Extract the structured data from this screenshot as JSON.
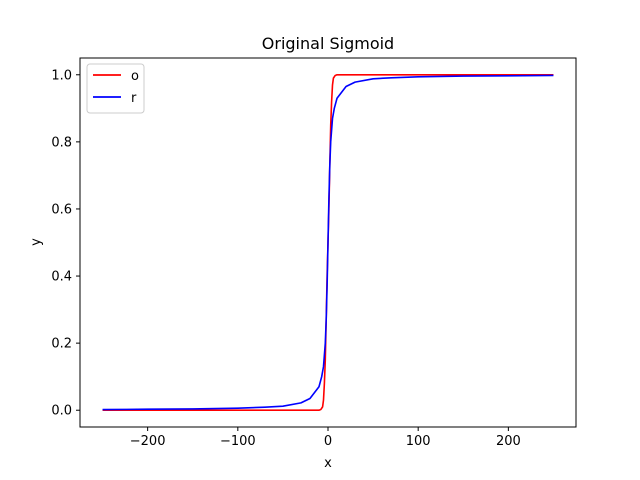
{
  "chart_data": {
    "type": "line",
    "title": "Original Sigmoid",
    "xlabel": "x",
    "ylabel": "y",
    "xlim": [
      -275,
      275
    ],
    "ylim": [
      -0.05,
      1.05
    ],
    "xticks": [
      -200,
      -100,
      0,
      100,
      200
    ],
    "xtick_labels": [
      "−200",
      "−100",
      "0",
      "100",
      "200"
    ],
    "yticks": [
      0.0,
      0.2,
      0.4,
      0.6,
      0.8,
      1.0
    ],
    "ytick_labels": [
      "0.0",
      "0.2",
      "0.4",
      "0.6",
      "0.8",
      "1.0"
    ],
    "grid": false,
    "legend": "upper-left",
    "series": [
      {
        "name": "o",
        "color": "#ff0000",
        "x": [
          -250,
          -200,
          -150,
          -100,
          -50,
          -20,
          -10,
          -8,
          -6,
          -5,
          -4,
          -3,
          -2,
          -1,
          0,
          1,
          2,
          3,
          4,
          5,
          6,
          8,
          10,
          20,
          50,
          100,
          150,
          200,
          250
        ],
        "y": [
          0.0,
          0.0,
          0.0,
          0.0,
          0.0,
          0.0,
          0.0,
          0.002,
          0.01,
          0.03,
          0.08,
          0.15,
          0.27,
          0.4,
          0.5,
          0.6,
          0.73,
          0.85,
          0.92,
          0.97,
          0.99,
          0.998,
          1.0,
          1.0,
          1.0,
          1.0,
          1.0,
          1.0,
          1.0
        ]
      },
      {
        "name": "r",
        "color": "#0000ff",
        "x": [
          -250,
          -200,
          -150,
          -100,
          -70,
          -50,
          -30,
          -20,
          -10,
          -7,
          -5,
          -3,
          -2,
          -1,
          0,
          1,
          2,
          3,
          5,
          7,
          10,
          20,
          30,
          50,
          70,
          100,
          150,
          200,
          250
        ],
        "y": [
          0.002,
          0.003,
          0.004,
          0.006,
          0.009,
          0.012,
          0.022,
          0.035,
          0.07,
          0.1,
          0.13,
          0.2,
          0.27,
          0.37,
          0.5,
          0.63,
          0.73,
          0.8,
          0.87,
          0.9,
          0.93,
          0.965,
          0.978,
          0.988,
          0.991,
          0.994,
          0.996,
          0.997,
          0.998
        ]
      }
    ]
  }
}
